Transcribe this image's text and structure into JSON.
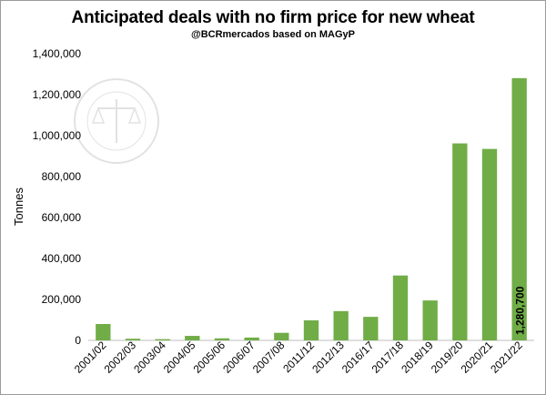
{
  "chart_data": {
    "type": "bar",
    "title": "Anticipated deals with no firm price for new wheat",
    "subtitle": "@BCRmercados based on MAGyP",
    "xlabel": "",
    "ylabel": "Tonnes",
    "ylim": [
      0,
      1400000
    ],
    "yticks": [
      0,
      200000,
      400000,
      600000,
      800000,
      1000000,
      1200000,
      1400000
    ],
    "ytick_labels": [
      "0",
      "200,000",
      "400,000",
      "600,000",
      "800,000",
      "1,000,000",
      "1,200,000",
      "1,400,000"
    ],
    "categories": [
      "2001/02",
      "2002/03",
      "2003/04",
      "2004/05",
      "2005/06",
      "2006/07",
      "2007/08",
      "2011/12",
      "2012/13",
      "2016/17",
      "2017/18",
      "2018/19",
      "2019/20",
      "2020/21",
      "2021/22"
    ],
    "values": [
      80000,
      8000,
      6000,
      22000,
      10000,
      14000,
      37000,
      98000,
      143000,
      115000,
      317000,
      195000,
      962000,
      935000,
      1280700
    ],
    "data_labels": [
      {
        "index": 14,
        "text": "1,280,700"
      }
    ],
    "bar_color": "#70ad47",
    "grid": false,
    "legend": "none"
  }
}
